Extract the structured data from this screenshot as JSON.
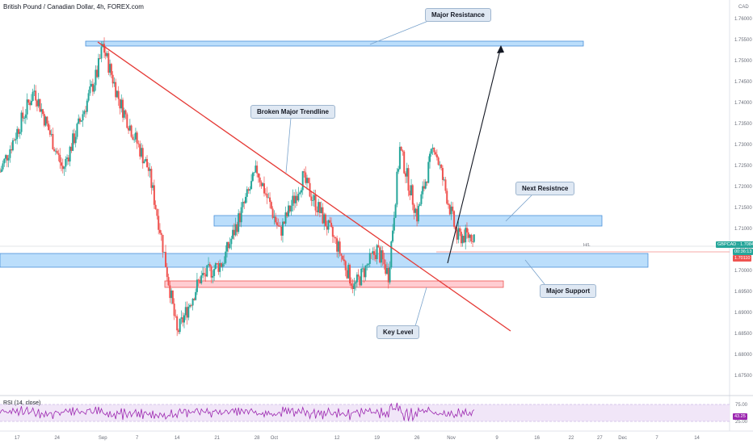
{
  "header": {
    "title": "British Pound / Canadian Dollar, 4h, FOREX.com"
  },
  "currency_label": "CAD",
  "annotations": {
    "major_resistance": "Major Resistance",
    "broken_trendline": "Broken Major Trendline",
    "next_resistance": "Next Resistnce",
    "major_support": "Major Support",
    "key_level": "Key Level"
  },
  "price_tags": {
    "symbol_price": "GBPCAD · 1.70840",
    "countdown": "00:36:13",
    "level": "1.70110",
    "hl_label": "H/L"
  },
  "rsi": {
    "title": "RSI (14, close)",
    "value": "43.25",
    "ticks": [
      "75.00",
      "25.00"
    ]
  },
  "colors": {
    "up": "#26a69a",
    "down": "#ef5350",
    "zone_blue": "#bbdefb",
    "zone_red": "#ffcdd2",
    "trendline": "#e53935",
    "rsi_line": "#9c27b0"
  },
  "chart_data": {
    "type": "candlestick",
    "title": "British Pound / Canadian Dollar, 4h, FOREX.com",
    "y_ticks": [
      1.76,
      1.755,
      1.75,
      1.745,
      1.74,
      1.735,
      1.73,
      1.725,
      1.72,
      1.715,
      1.71,
      1.705,
      1.7,
      1.695,
      1.69,
      1.685,
      1.68,
      1.675
    ],
    "y_tick_labels": [
      "1.76000",
      "1.75500",
      "1.75000",
      "1.74500",
      "1.74000",
      "1.73500",
      "1.73000",
      "1.72500",
      "1.72000",
      "1.71500",
      "1.71000",
      "1.70500",
      "1.70000",
      "1.69500",
      "1.69000",
      "1.68500",
      "1.68000",
      "1.67500"
    ],
    "x_tick_labels": [
      "17",
      "24",
      "Sep",
      "7",
      "14",
      "21",
      "28",
      "Oct",
      "12",
      "19",
      "26",
      "Nov",
      "9",
      "16",
      "22",
      "27",
      "Dec",
      "7",
      "14"
    ],
    "ylim": [
      1.6725,
      1.7625
    ],
    "key_points": [
      {
        "date": "Aug 14",
        "close": 1.7235
      },
      {
        "date": "Aug 20",
        "close": 1.743
      },
      {
        "date": "Aug 25",
        "close": 1.724
      },
      {
        "date": "Aug 31",
        "close": 1.747
      },
      {
        "date": "Sep 1",
        "close": 1.7535
      },
      {
        "date": "Sep 4",
        "close": 1.74
      },
      {
        "date": "Sep 9",
        "close": 1.724
      },
      {
        "date": "Sep 11",
        "close": 1.71
      },
      {
        "date": "Sep 14",
        "close": 1.685
      },
      {
        "date": "Sep 18",
        "close": 1.698
      },
      {
        "date": "Sep 22",
        "close": 1.702
      },
      {
        "date": "Sep 28",
        "close": 1.724
      },
      {
        "date": "Oct 2",
        "close": 1.709
      },
      {
        "date": "Oct 6",
        "close": 1.722
      },
      {
        "date": "Oct 12",
        "close": 1.706
      },
      {
        "date": "Oct 15",
        "close": 1.696
      },
      {
        "date": "Oct 19",
        "close": 1.705
      },
      {
        "date": "Oct 21",
        "close": 1.699
      },
      {
        "date": "Oct 23",
        "close": 1.729
      },
      {
        "date": "Oct 26",
        "close": 1.713
      },
      {
        "date": "Oct 29",
        "close": 1.73
      },
      {
        "date": "Nov 2",
        "close": 1.708
      },
      {
        "date": "Nov 5",
        "close": 1.7084
      }
    ],
    "zones": [
      {
        "name": "Major Resistance",
        "y_low": 1.7535,
        "y_high": 1.755,
        "color": "blue"
      },
      {
        "name": "Next Resistnce",
        "y_low": 1.713,
        "y_high": 1.7155,
        "color": "blue"
      },
      {
        "name": "Major Support",
        "y_low": 1.702,
        "y_high": 1.705,
        "color": "blue"
      },
      {
        "name": "Key Level",
        "y_low": 1.699,
        "y_high": 1.7005,
        "color": "red"
      }
    ],
    "rsi_ticks": [
      75,
      25
    ],
    "rsi_last": 43.25
  }
}
